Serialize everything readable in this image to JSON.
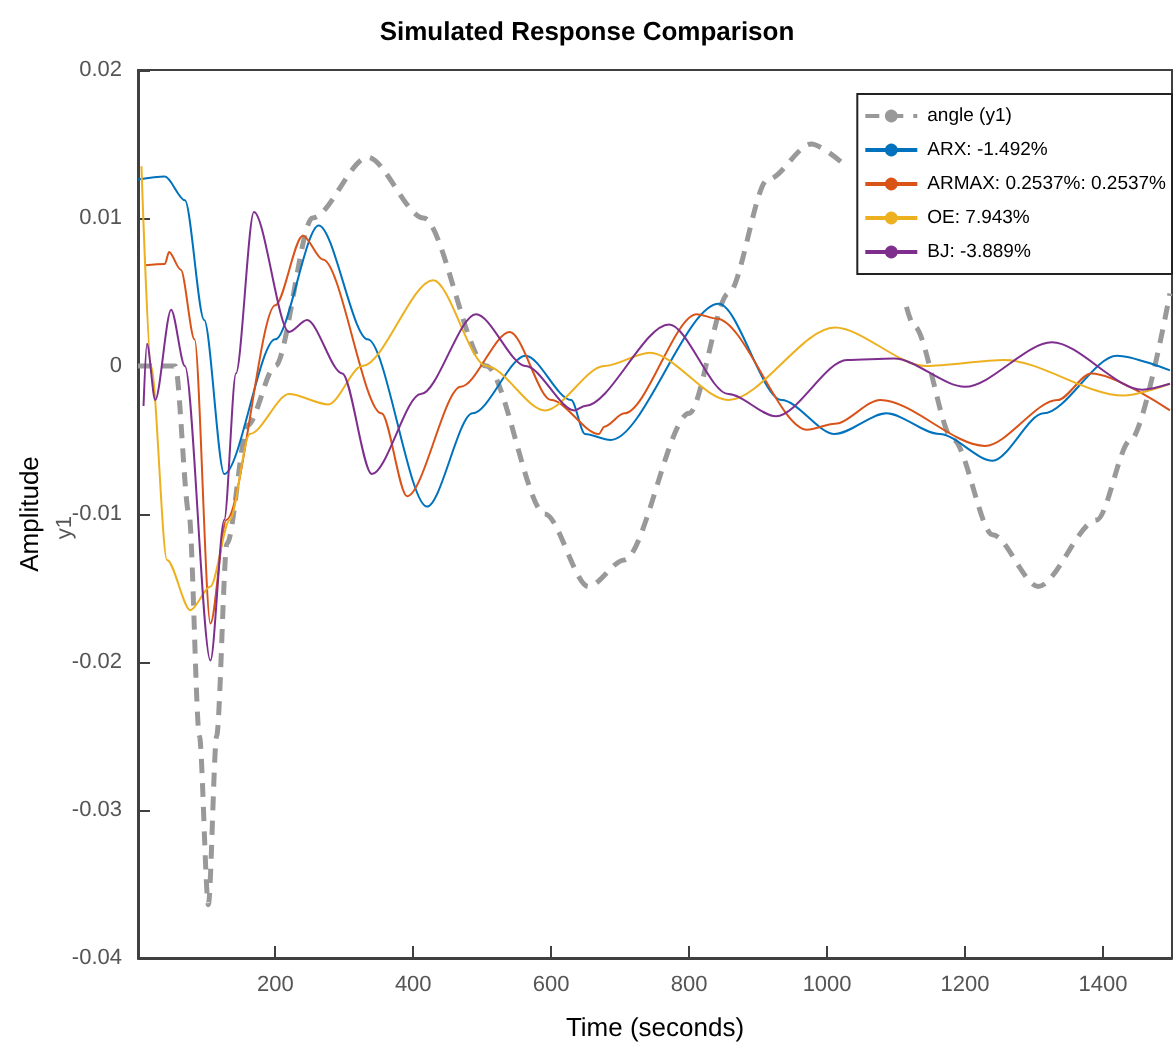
{
  "chart_data": {
    "type": "line",
    "title": "Simulated Response Comparison",
    "xlabel": "Time (seconds)",
    "ylabel": "Amplitude",
    "annotations": [
      "y1"
    ],
    "xlim": [
      1,
      1500
    ],
    "ylim": [
      -0.04,
      0.02
    ],
    "xticks": [
      200,
      400,
      600,
      800,
      1000,
      1200,
      1400
    ],
    "yticks": [
      -0.04,
      -0.03,
      -0.02,
      -0.01,
      0,
      0.01,
      0.02
    ],
    "grid": false,
    "legend": "top right",
    "marker": "none",
    "line_style": "solid",
    "series": [
      {
        "name": "angle (y1)",
        "color": "#999999",
        "line_style": "dashed",
        "x": [
          1,
          55,
          75,
          90,
          103,
          115,
          130,
          160,
          200,
          254,
          334,
          415,
          506,
          591,
          654,
          706,
          800,
          857,
          914,
          977,
          1020,
          1057,
          1115,
          1126,
          1183,
          1240,
          1306,
          1391,
          1440,
          1497
        ],
        "values": [
          0,
          0,
          -0.01,
          -0.025,
          -0.0364,
          -0.025,
          -0.012,
          -0.004,
          0,
          0.01,
          0.0141,
          0.01,
          0,
          -0.01,
          -0.0149,
          -0.0131,
          -0.0032,
          0.0049,
          0.0126,
          0.015,
          0.0138,
          null,
          0.004,
          0.0027,
          -0.005,
          -0.0114,
          -0.0149,
          -0.0104,
          -0.005,
          0.0049
        ]
      },
      {
        "name": "ARX: -1.492%",
        "color": "#0072bd",
        "x": [
          1,
          40,
          69,
          97,
          126,
          200,
          263,
          334,
          420,
          486,
          563,
          629,
          649,
          686,
          843,
          934,
          1011,
          1086,
          1163,
          1240,
          1314,
          1420,
          1497
        ],
        "values": [
          0.0126,
          0.0128,
          0.0112,
          0.0031,
          -0.0073,
          0.0018,
          0.0095,
          0.0018,
          -0.0095,
          -0.0032,
          0.0007,
          -0.0023,
          -0.0046,
          -0.005,
          0.0042,
          -0.0023,
          -0.0046,
          -0.0032,
          -0.0046,
          -0.0064,
          -0.0032,
          0.0007,
          -0.0003
        ]
      },
      {
        "name": "ARMAX: 0.2537%: 0.2537%",
        "color": "#d95319",
        "x": [
          11,
          40,
          46,
          63,
          83,
          106,
          129,
          200,
          240,
          269,
          354,
          391,
          469,
          540,
          600,
          669,
          677,
          706,
          811,
          840,
          971,
          1011,
          1077,
          1229,
          1334,
          1383,
          1497
        ],
        "values": [
          0.0068,
          0.0069,
          0.0077,
          0.0065,
          0.0018,
          -0.0174,
          -0.0104,
          0.0041,
          0.0088,
          0.0072,
          -0.0032,
          -0.0088,
          -0.0014,
          0.0023,
          -0.0023,
          -0.0046,
          -0.0041,
          -0.0032,
          0.0035,
          0.0032,
          -0.0043,
          -0.0039,
          -0.0023,
          -0.0054,
          -0.0023,
          -0.0005,
          -0.003
        ]
      },
      {
        "name": "OE: 7.943%",
        "color": "#edb120",
        "x": [
          6,
          20,
          43,
          77,
          106,
          134,
          163,
          220,
          277,
          326,
          429,
          506,
          591,
          677,
          743,
          857,
          1011,
          1143,
          1257,
          1429,
          1497
        ],
        "values": [
          0.0135,
          0,
          -0.0131,
          -0.0165,
          -0.0149,
          -0.0104,
          -0.0046,
          -0.0019,
          -0.0026,
          0,
          0.0058,
          0,
          -0.003,
          0,
          0.0009,
          -0.0023,
          0.0026,
          0,
          0.0004,
          -0.002,
          -0.0012
        ]
      },
      {
        "name": "BJ: -3.889%",
        "color": "#7e2f8e",
        "x": [
          9,
          14,
          26,
          49,
          69,
          106,
          126,
          143,
          169,
          220,
          246,
          297,
          340,
          411,
          491,
          563,
          634,
          649,
          771,
          857,
          926,
          1029,
          1097,
          1200,
          1326,
          1457,
          1497
        ],
        "values": [
          -0.0027,
          0.0015,
          -0.0023,
          0.0038,
          0,
          -0.0199,
          -0.0104,
          -0.0005,
          0.0104,
          0.0023,
          0.0031,
          -0.0005,
          -0.0073,
          -0.0019,
          0.0035,
          0,
          -0.003,
          -0.0027,
          0.0028,
          -0.0019,
          -0.0034,
          0.0004,
          0.0005,
          -0.0014,
          0.0016,
          -0.0016,
          -0.0012
        ]
      }
    ]
  }
}
